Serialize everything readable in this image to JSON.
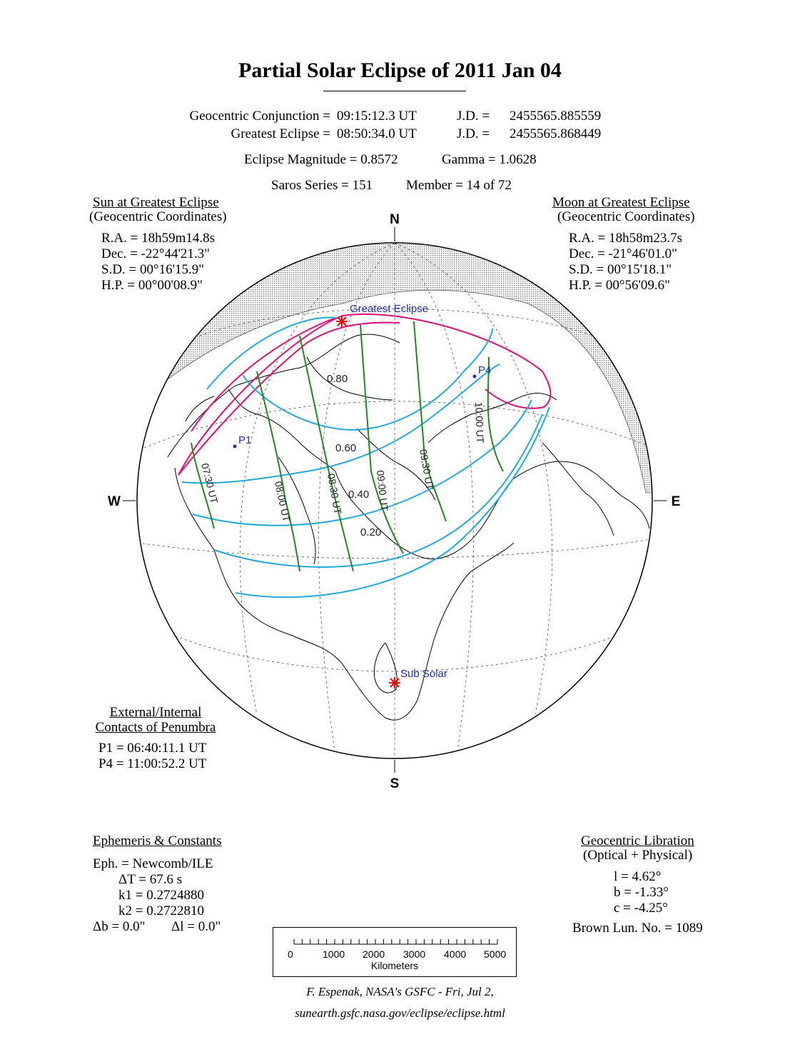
{
  "title": "Partial Solar Eclipse of  2011 Jan 04",
  "header": {
    "conj_label": "Geocentric Conjunction =",
    "conj_time": "09:15:12.3 UT",
    "conj_jd_label": "J.D. =",
    "conj_jd": "2455565.885559",
    "ge_label": "Greatest Eclipse =",
    "ge_time": "08:50:34.0 UT",
    "ge_jd_label": "J.D. =",
    "ge_jd": "2455565.868449",
    "magnitude": "Eclipse Magnitude =  0.8572",
    "gamma": "Gamma =  1.0628",
    "saros": "Saros Series = 151",
    "member": "Member = 14 of 72"
  },
  "sun": {
    "heading": "Sun at Greatest Eclipse",
    "sub": "(Geocentric Coordinates)",
    "ra": "R.A. = 18h59m14.8s",
    "dec": "Dec. = -22°44'21.3\"",
    "sd": "S.D. =  00°16'15.9\"",
    "hp": "H.P. =  00°00'08.9\""
  },
  "moon": {
    "heading": "Moon at Greatest Eclipse",
    "sub": "(Geocentric Coordinates)",
    "ra": "R.A. = 18h58m23.7s",
    "dec": "Dec. = -21°46'01.0\"",
    "sd": "S.D. =  00°15'18.1\"",
    "hp": "H.P. =  00°56'09.6\""
  },
  "contacts": {
    "heading1": "External/Internal",
    "heading2": "Contacts of Penumbra",
    "p1": "P1 = 06:40:11.1 UT",
    "p4": "P4 = 11:00:52.2 UT"
  },
  "ephemeris": {
    "heading": "Ephemeris & Constants",
    "eph": "Eph. = Newcomb/ILE",
    "dt": "ΔT =     67.6 s",
    "k1": "k1 = 0.2724880",
    "k2": "k2 = 0.2722810",
    "db": "Δb =   0.0\"",
    "dl": "Δl =   0.0\""
  },
  "libration": {
    "heading": "Geocentric Libration",
    "sub": "(Optical + Physical)",
    "l": "l =    4.62°",
    "b": "b =   -1.33°",
    "c": "c =   -4.25°",
    "brown": "Brown Lun. No. = 1089"
  },
  "map": {
    "compass": {
      "n": "N",
      "s": "S",
      "e": "E",
      "w": "W"
    },
    "labels": {
      "greatest": "Greatest Eclipse",
      "subsolar": "Sub Solar",
      "p1": "P1",
      "p4": "P4"
    },
    "magnitude_labels": [
      "0.80",
      "0.60",
      "0.40",
      "0.20"
    ],
    "time_labels": [
      "07:30 UT",
      "08:00 UT",
      "08:30 UT",
      "09:00 UT",
      "09:30 UT",
      "10:00 UT"
    ],
    "colors": {
      "limits": "#dd1177",
      "magnitude": "#22aadd",
      "time": "#228822",
      "night": "#999999",
      "marker": "#ee0000",
      "label": "#2233aa"
    }
  },
  "scale": {
    "ticks": [
      "0",
      "1000",
      "2000",
      "3000",
      "4000",
      "5000"
    ],
    "unit": "Kilometers"
  },
  "credit": {
    "line1": "F. Espenak, NASA's GSFC - Fri, Jul 2,",
    "line2": "sunearth.gsfc.nasa.gov/eclipse/eclipse.html"
  }
}
